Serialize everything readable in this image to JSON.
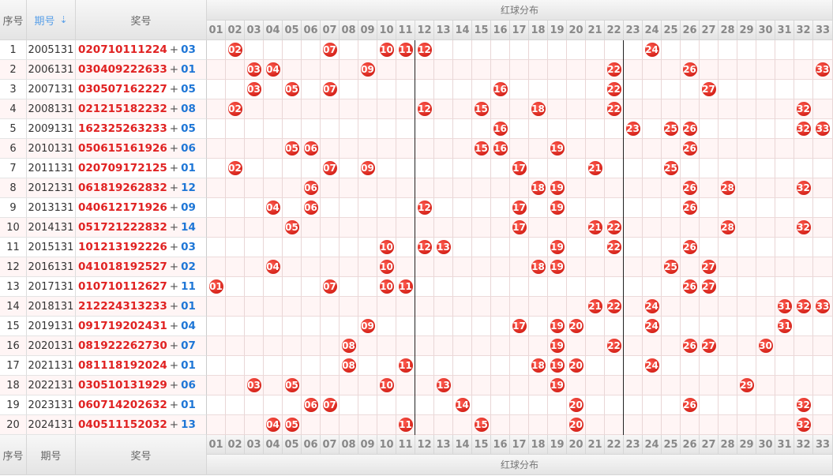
{
  "header": {
    "col_index": "序号",
    "col_issue": "期号",
    "col_prize": "奖号",
    "dist_title": "红球分布",
    "sort_icon": "sort-icon"
  },
  "footer": {
    "col_index": "序号",
    "col_issue": "期号",
    "col_prize": "奖号",
    "dist_title": "红球分布"
  },
  "numbers": [
    "01",
    "02",
    "03",
    "04",
    "05",
    "06",
    "07",
    "08",
    "09",
    "10",
    "11",
    "12",
    "13",
    "14",
    "15",
    "16",
    "17",
    "18",
    "19",
    "20",
    "21",
    "22",
    "23",
    "24",
    "25",
    "26",
    "27",
    "28",
    "29",
    "30",
    "31",
    "32",
    "33"
  ],
  "plus_sign": "+",
  "rows": [
    {
      "idx": "1",
      "issue": "2005131",
      "reds": [
        "02",
        "07",
        "10",
        "11",
        "12",
        "24"
      ],
      "blue": "03"
    },
    {
      "idx": "2",
      "issue": "2006131",
      "reds": [
        "03",
        "04",
        "09",
        "22",
        "26",
        "33"
      ],
      "blue": "01"
    },
    {
      "idx": "3",
      "issue": "2007131",
      "reds": [
        "03",
        "05",
        "07",
        "16",
        "22",
        "27"
      ],
      "blue": "05"
    },
    {
      "idx": "4",
      "issue": "2008131",
      "reds": [
        "02",
        "12",
        "15",
        "18",
        "22",
        "32"
      ],
      "blue": "08"
    },
    {
      "idx": "5",
      "issue": "2009131",
      "reds": [
        "16",
        "23",
        "25",
        "26",
        "32",
        "33"
      ],
      "blue": "05"
    },
    {
      "idx": "6",
      "issue": "2010131",
      "reds": [
        "05",
        "06",
        "15",
        "16",
        "19",
        "26"
      ],
      "blue": "06"
    },
    {
      "idx": "7",
      "issue": "2011131",
      "reds": [
        "02",
        "07",
        "09",
        "17",
        "21",
        "25"
      ],
      "blue": "01"
    },
    {
      "idx": "8",
      "issue": "2012131",
      "reds": [
        "06",
        "18",
        "19",
        "26",
        "28",
        "32"
      ],
      "blue": "12"
    },
    {
      "idx": "9",
      "issue": "2013131",
      "reds": [
        "04",
        "06",
        "12",
        "17",
        "19",
        "26"
      ],
      "blue": "09"
    },
    {
      "idx": "10",
      "issue": "2014131",
      "reds": [
        "05",
        "17",
        "21",
        "22",
        "28",
        "32"
      ],
      "blue": "14"
    },
    {
      "idx": "11",
      "issue": "2015131",
      "reds": [
        "10",
        "12",
        "13",
        "19",
        "22",
        "26"
      ],
      "blue": "03"
    },
    {
      "idx": "12",
      "issue": "2016131",
      "reds": [
        "04",
        "10",
        "18",
        "19",
        "25",
        "27"
      ],
      "blue": "02"
    },
    {
      "idx": "13",
      "issue": "2017131",
      "reds": [
        "01",
        "07",
        "10",
        "11",
        "26",
        "27"
      ],
      "blue": "11"
    },
    {
      "idx": "14",
      "issue": "2018131",
      "reds": [
        "21",
        "22",
        "24",
        "31",
        "32",
        "33"
      ],
      "blue": "01"
    },
    {
      "idx": "15",
      "issue": "2019131",
      "reds": [
        "09",
        "17",
        "19",
        "20",
        "24",
        "31"
      ],
      "blue": "04"
    },
    {
      "idx": "16",
      "issue": "2020131",
      "reds": [
        "08",
        "19",
        "22",
        "26",
        "27",
        "30"
      ],
      "blue": "07"
    },
    {
      "idx": "17",
      "issue": "2021131",
      "reds": [
        "08",
        "11",
        "18",
        "19",
        "20",
        "24"
      ],
      "blue": "01"
    },
    {
      "idx": "18",
      "issue": "2022131",
      "reds": [
        "03",
        "05",
        "10",
        "13",
        "19",
        "29"
      ],
      "blue": "06"
    },
    {
      "idx": "19",
      "issue": "2023131",
      "reds": [
        "06",
        "07",
        "14",
        "20",
        "26",
        "32"
      ],
      "blue": "01"
    },
    {
      "idx": "20",
      "issue": "2024131",
      "reds": [
        "04",
        "05",
        "11",
        "15",
        "20",
        "32"
      ],
      "blue": "13"
    }
  ],
  "colors": {
    "red_ball": "#e02222",
    "blue_number": "#1e76d6",
    "sort_accent": "#5aa0e8",
    "odd_row": "#fff5f5"
  }
}
